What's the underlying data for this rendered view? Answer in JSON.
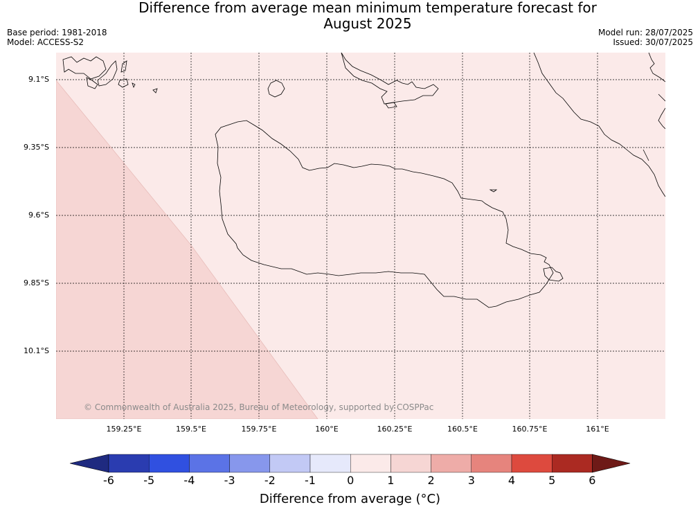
{
  "title_line1": "Difference from average mean minimum temperature forecast for",
  "title_line2": "August 2025",
  "base_period": "Base period: 1981-2018",
  "model": "Model: ACCESS-S2",
  "model_run": "Model run: 28/07/2025",
  "issued": "Issued: 30/07/2025",
  "lat_labels": [
    "9.1°S",
    "9.35°S",
    "9.6°S",
    "9.85°S",
    "10.1°S"
  ],
  "lon_labels": [
    "159.25°E",
    "159.5°E",
    "159.75°E",
    "160°E",
    "160.25°E",
    "160.5°E",
    "160.75°E",
    "161°E"
  ],
  "copyright": "© Commonwealth of Australia 2025, Bureau of Meteorology, supported by COSPPac",
  "colorbar": {
    "ticks": [
      "-6",
      "-5",
      "-4",
      "-3",
      "-2",
      "-1",
      "0",
      "1",
      "2",
      "3",
      "4",
      "5",
      "6"
    ],
    "colors": [
      "#1f2a80",
      "#2a3cb0",
      "#3050e0",
      "#5b73e6",
      "#8797ec",
      "#c2c9f5",
      "#e6e9fb",
      "#fbeae9",
      "#f6d6d4",
      "#eeaca8",
      "#e6847d",
      "#dd4a3e",
      "#ab2a22",
      "#6e1a17"
    ],
    "label": "Difference from average (°C)"
  },
  "map_fill_colors": {
    "range_0_1": "#fbeae9",
    "range_1_2": "#f6d6d4"
  }
}
